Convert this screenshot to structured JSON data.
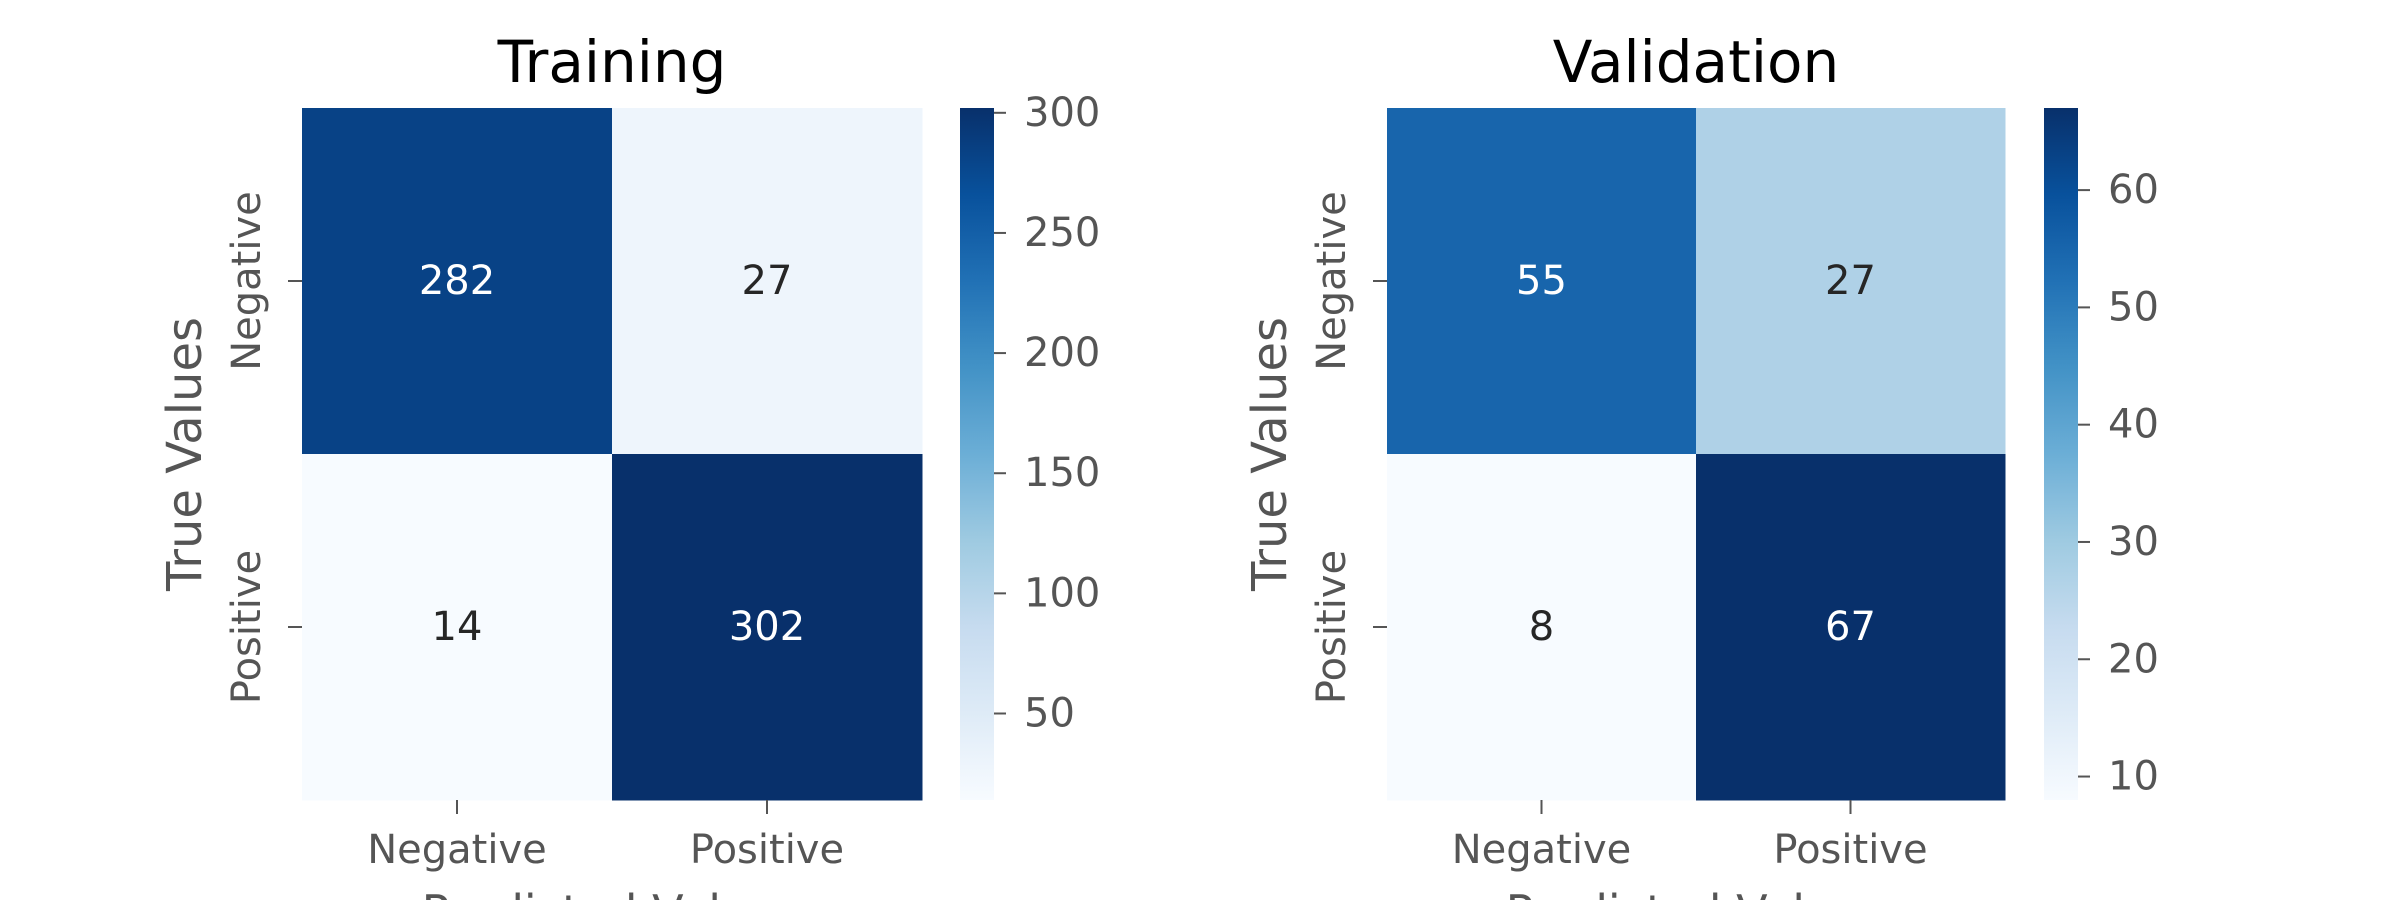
{
  "chart_data": [
    {
      "type": "heatmap",
      "title": "Training",
      "xlabel": "Predicted Values",
      "ylabel": "True Values",
      "x_categories": [
        "Negative",
        "Positive"
      ],
      "y_categories": [
        "Negative",
        "Positive"
      ],
      "values": [
        [
          282,
          27
        ],
        [
          14,
          302
        ]
      ],
      "colormap": "Blues",
      "colorbar": {
        "range": [
          14,
          302
        ],
        "ticks": [
          50,
          100,
          150,
          200,
          250,
          300
        ]
      }
    },
    {
      "type": "heatmap",
      "title": "Validation",
      "xlabel": "Predicted Values",
      "ylabel": "True Values",
      "x_categories": [
        "Negative",
        "Positive"
      ],
      "y_categories": [
        "Negative",
        "Positive"
      ],
      "values": [
        [
          55,
          27
        ],
        [
          8,
          67
        ]
      ],
      "colormap": "Blues",
      "colorbar": {
        "range": [
          8,
          67
        ],
        "ticks": [
          10,
          20,
          30,
          40,
          50,
          60
        ]
      }
    }
  ],
  "colors": {
    "blues_scale": [
      "#f7fbff",
      "#deebf7",
      "#c6dbef",
      "#9ecae1",
      "#6baed6",
      "#4292c6",
      "#2171b5",
      "#08519c",
      "#08306b"
    ],
    "text_light": "#ffffff",
    "text_dark": "#262626",
    "axis_text": "#555555"
  }
}
